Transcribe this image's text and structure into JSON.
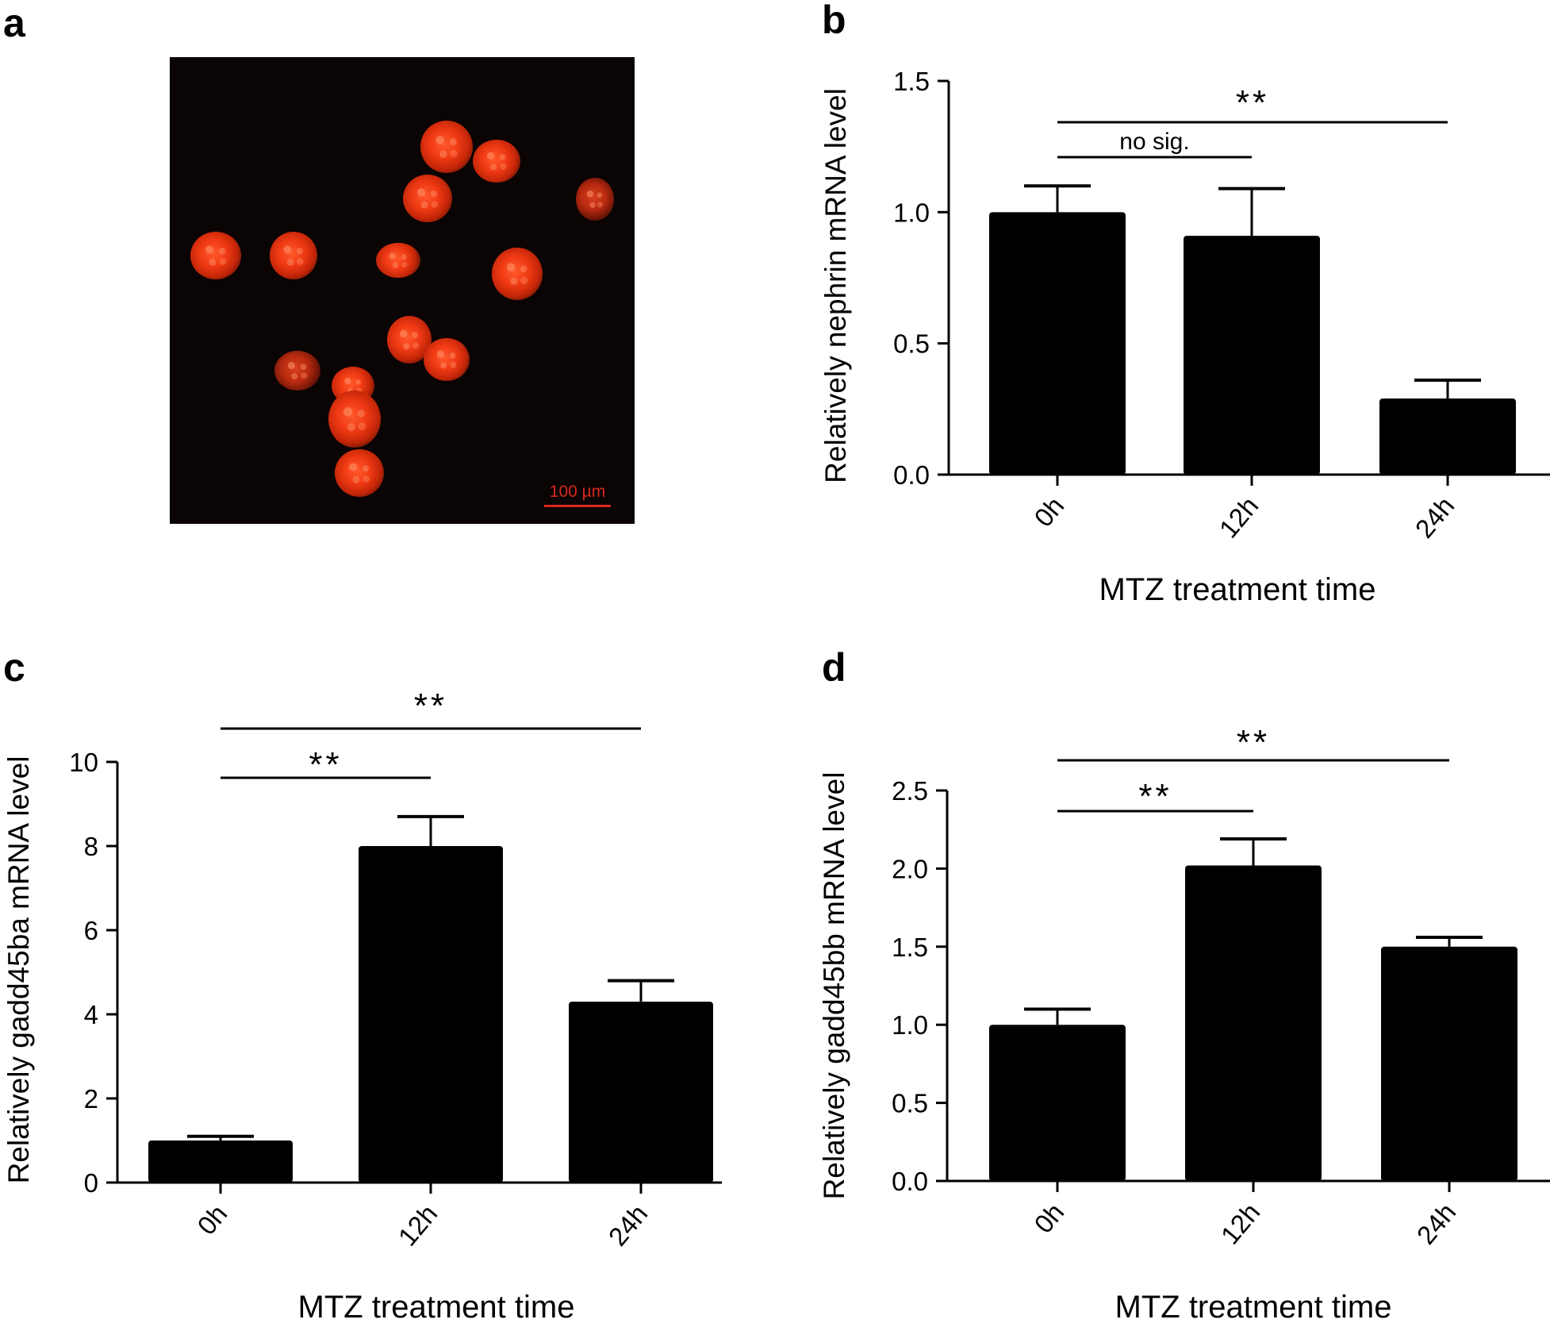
{
  "panel_a": {
    "letter": "a",
    "scale_label": "100 µm"
  },
  "chart_data": [
    {
      "panel": "b",
      "type": "bar",
      "categories": [
        "0h",
        "12h",
        "24h"
      ],
      "values": [
        1.0,
        0.91,
        0.29
      ],
      "errors": [
        0.1,
        0.18,
        0.07
      ],
      "xlabel": "MTZ treatment time",
      "ylabel": "Relatively nephrin mRNA level",
      "ylim": [
        0,
        1.5
      ],
      "yticks": [
        "0.0",
        "0.5",
        "1.0",
        "1.5"
      ],
      "significance": [
        {
          "from": 0,
          "to": 1,
          "label": "no sig."
        },
        {
          "from": 0,
          "to": 2,
          "label": "**"
        }
      ]
    },
    {
      "panel": "c",
      "type": "bar",
      "categories": [
        "0h",
        "12h",
        "24h"
      ],
      "values": [
        1.0,
        8.0,
        4.3
      ],
      "errors": [
        0.1,
        0.7,
        0.5
      ],
      "xlabel": "MTZ treatment time",
      "ylabel": "Relatively gadd45ba mRNA level",
      "ylim": [
        0,
        10
      ],
      "yticks": [
        "0",
        "2",
        "4",
        "6",
        "8",
        "10"
      ],
      "significance": [
        {
          "from": 0,
          "to": 1,
          "label": "**"
        },
        {
          "from": 0,
          "to": 2,
          "label": "**"
        }
      ]
    },
    {
      "panel": "d",
      "type": "bar",
      "categories": [
        "0h",
        "12h",
        "24h"
      ],
      "values": [
        1.0,
        2.02,
        1.5
      ],
      "errors": [
        0.1,
        0.17,
        0.06
      ],
      "xlabel": "MTZ treatment time",
      "ylabel": "Relatively gadd45bb mRNA level",
      "ylim": [
        0,
        2.5
      ],
      "yticks": [
        "0.0",
        "0.5",
        "1.0",
        "1.5",
        "2.0",
        "2.5"
      ],
      "significance": [
        {
          "from": 0,
          "to": 1,
          "label": "**"
        },
        {
          "from": 0,
          "to": 2,
          "label": "**"
        }
      ]
    }
  ]
}
